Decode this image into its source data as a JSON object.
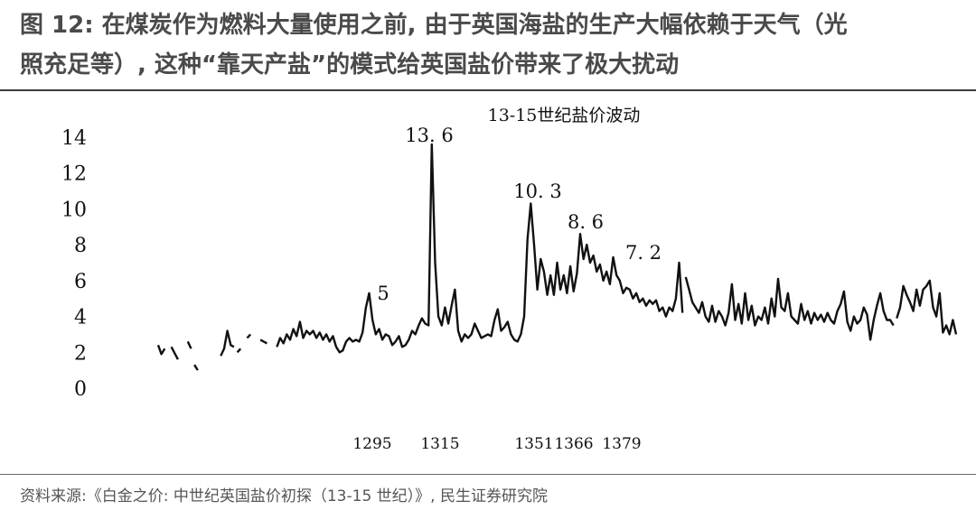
{
  "figure": {
    "title_line1": "图 12: 在煤炭作为燃料大量使用之前, 由于英国海盐的生产大幅依赖于天气（光",
    "title_line2": "照充足等）, 这种“靠天产盐”的模式给英国盐价带来了极大扰动",
    "source": "资料来源:《白金之价: 中世纪英国盐价初探（13-15 世纪）》, 民生证券研究院"
  },
  "chart_data": {
    "type": "line",
    "title": "13-15世纪盐价波动",
    "xlabel": "",
    "ylabel": "",
    "xlim": [
      1260,
      1500
    ],
    "ylim": [
      0,
      14
    ],
    "y_ticks": [
      0,
      2,
      4,
      6,
      8,
      10,
      12,
      14
    ],
    "x_tick_labels": [
      {
        "x": 1295,
        "label": "1295"
      },
      {
        "x": 1315,
        "label": "1315"
      },
      {
        "x": 1351,
        "label": "1351"
      },
      {
        "x": 1366,
        "label": "1366"
      },
      {
        "x": 1379,
        "label": "1379"
      }
    ],
    "annotations": [
      {
        "x": 1295,
        "y": 5.5,
        "label": "5"
      },
      {
        "x": 1315,
        "y": 13.6,
        "label": "13. 6"
      },
      {
        "x": 1351,
        "y": 10.3,
        "label": "10. 3"
      },
      {
        "x": 1366,
        "y": 8.6,
        "label": "8. 6"
      },
      {
        "x": 1379,
        "y": 7.2,
        "label": "7. 2"
      }
    ],
    "grid": false,
    "color": "#111111",
    "segments": [
      [
        [
          1262,
          2.4
        ],
        [
          1263,
          1.9
        ],
        [
          1264,
          2.2
        ]
      ],
      [
        [
          1266,
          2.3
        ],
        [
          1268,
          1.6
        ]
      ],
      [
        [
          1271,
          2.6
        ],
        [
          1272,
          2.2
        ]
      ],
      [
        [
          1273,
          1.3
        ],
        [
          1274,
          1.0
        ]
      ],
      [
        [
          1281,
          1.8
        ],
        [
          1282,
          2.2
        ],
        [
          1283,
          3.2
        ],
        [
          1284,
          2.4
        ],
        [
          1285,
          2.3
        ]
      ],
      [
        [
          1286,
          2.0
        ],
        [
          1287,
          2.2
        ]
      ],
      [
        [
          1289,
          2.8
        ],
        [
          1290,
          3.0
        ]
      ],
      [
        [
          1293,
          2.7
        ],
        [
          1295,
          2.5
        ]
      ],
      [
        [
          1298,
          2.3
        ],
        [
          1299,
          2.8
        ],
        [
          1300,
          2.5
        ],
        [
          1301,
          3.0
        ],
        [
          1302,
          2.7
        ],
        [
          1303,
          3.3
        ],
        [
          1304,
          2.9
        ],
        [
          1305,
          3.7
        ],
        [
          1306,
          2.8
        ],
        [
          1307,
          3.2
        ],
        [
          1308,
          3.0
        ],
        [
          1309,
          3.2
        ],
        [
          1310,
          2.8
        ],
        [
          1311,
          3.1
        ],
        [
          1312,
          2.7
        ],
        [
          1313,
          3.0
        ],
        [
          1314,
          2.6
        ],
        [
          1315,
          2.9
        ],
        [
          1316,
          2.3
        ],
        [
          1317,
          2.0
        ],
        [
          1318,
          2.1
        ],
        [
          1319,
          2.6
        ],
        [
          1320,
          2.8
        ],
        [
          1321,
          2.6
        ],
        [
          1322,
          2.7
        ],
        [
          1323,
          2.6
        ],
        [
          1324,
          3.1
        ],
        [
          1325,
          4.5
        ],
        [
          1326,
          5.3
        ],
        [
          1327,
          3.8
        ],
        [
          1328,
          3.0
        ],
        [
          1329,
          3.3
        ],
        [
          1330,
          2.7
        ],
        [
          1331,
          3.0
        ],
        [
          1332,
          2.9
        ],
        [
          1333,
          2.4
        ],
        [
          1334,
          2.6
        ],
        [
          1335,
          2.9
        ],
        [
          1336,
          2.3
        ],
        [
          1337,
          2.4
        ],
        [
          1338,
          2.7
        ],
        [
          1339,
          3.2
        ],
        [
          1340,
          3.0
        ],
        [
          1341,
          3.5
        ],
        [
          1342,
          3.9
        ],
        [
          1343,
          3.6
        ],
        [
          1344,
          3.5
        ],
        [
          1345,
          13.6
        ],
        [
          1346,
          7.0
        ],
        [
          1347,
          4.0
        ],
        [
          1348,
          3.5
        ],
        [
          1349,
          4.5
        ],
        [
          1350,
          3.6
        ],
        [
          1351,
          4.6
        ],
        [
          1352,
          5.5
        ],
        [
          1353,
          3.2
        ],
        [
          1354,
          2.6
        ],
        [
          1355,
          3.0
        ],
        [
          1356,
          2.8
        ],
        [
          1357,
          3.0
        ],
        [
          1358,
          3.6
        ],
        [
          1359,
          3.2
        ],
        [
          1360,
          2.8
        ],
        [
          1361,
          2.9
        ],
        [
          1362,
          3.0
        ],
        [
          1363,
          2.9
        ],
        [
          1364,
          3.8
        ],
        [
          1365,
          4.4
        ],
        [
          1366,
          3.2
        ],
        [
          1367,
          3.4
        ],
        [
          1368,
          3.7
        ],
        [
          1369,
          3.0
        ],
        [
          1370,
          2.7
        ],
        [
          1371,
          2.6
        ],
        [
          1372,
          3.0
        ],
        [
          1373,
          4.0
        ],
        [
          1374,
          8.3
        ],
        [
          1375,
          10.3
        ],
        [
          1376,
          8.0
        ],
        [
          1377,
          5.5
        ],
        [
          1378,
          7.2
        ],
        [
          1379,
          6.5
        ],
        [
          1380,
          5.2
        ],
        [
          1381,
          6.3
        ],
        [
          1382,
          5.2
        ],
        [
          1383,
          7.0
        ],
        [
          1384,
          5.5
        ],
        [
          1385,
          6.3
        ],
        [
          1386,
          5.3
        ],
        [
          1387,
          6.8
        ],
        [
          1388,
          5.4
        ],
        [
          1389,
          6.4
        ],
        [
          1390,
          8.6
        ],
        [
          1391,
          7.2
        ],
        [
          1392,
          8.0
        ],
        [
          1393,
          7.0
        ],
        [
          1394,
          7.4
        ],
        [
          1395,
          6.5
        ],
        [
          1396,
          6.9
        ],
        [
          1397,
          6.0
        ],
        [
          1398,
          6.5
        ],
        [
          1399,
          5.8
        ],
        [
          1400,
          7.3
        ],
        [
          1401,
          6.3
        ],
        [
          1402,
          6.0
        ],
        [
          1403,
          5.3
        ],
        [
          1404,
          5.6
        ],
        [
          1405,
          5.5
        ],
        [
          1406,
          5.0
        ],
        [
          1407,
          5.3
        ],
        [
          1408,
          4.8
        ],
        [
          1409,
          5.0
        ],
        [
          1410,
          4.6
        ],
        [
          1411,
          4.9
        ],
        [
          1412,
          4.7
        ],
        [
          1413,
          4.9
        ],
        [
          1414,
          4.3
        ],
        [
          1415,
          4.5
        ],
        [
          1416,
          4.0
        ],
        [
          1417,
          4.5
        ],
        [
          1418,
          4.3
        ],
        [
          1419,
          5.0
        ],
        [
          1420,
          7.0
        ],
        [
          1421,
          4.2
        ]
      ],
      [
        [
          1422,
          6.2
        ],
        [
          1423,
          5.5
        ],
        [
          1424,
          4.8
        ],
        [
          1425,
          4.5
        ],
        [
          1426,
          4.2
        ],
        [
          1427,
          4.8
        ],
        [
          1428,
          4.0
        ],
        [
          1429,
          3.7
        ],
        [
          1430,
          4.6
        ],
        [
          1431,
          3.7
        ],
        [
          1432,
          4.3
        ],
        [
          1433,
          4.0
        ],
        [
          1434,
          3.5
        ],
        [
          1435,
          4.2
        ],
        [
          1436,
          5.8
        ],
        [
          1437,
          3.8
        ],
        [
          1438,
          4.7
        ],
        [
          1439,
          3.6
        ],
        [
          1440,
          5.3
        ],
        [
          1441,
          3.8
        ],
        [
          1442,
          4.6
        ],
        [
          1443,
          3.5
        ],
        [
          1444,
          4.0
        ],
        [
          1445,
          3.8
        ],
        [
          1446,
          4.5
        ],
        [
          1447,
          3.6
        ],
        [
          1448,
          5.0
        ],
        [
          1449,
          4.0
        ],
        [
          1450,
          6.1
        ],
        [
          1451,
          4.5
        ],
        [
          1452,
          4.3
        ],
        [
          1453,
          5.3
        ],
        [
          1454,
          4.0
        ],
        [
          1455,
          3.8
        ],
        [
          1456,
          3.6
        ],
        [
          1457,
          4.7
        ],
        [
          1458,
          3.8
        ],
        [
          1459,
          4.3
        ],
        [
          1460,
          3.6
        ],
        [
          1461,
          4.2
        ],
        [
          1462,
          3.8
        ],
        [
          1463,
          4.1
        ],
        [
          1464,
          3.7
        ],
        [
          1465,
          4.2
        ],
        [
          1466,
          3.8
        ],
        [
          1467,
          3.6
        ],
        [
          1468,
          4.3
        ],
        [
          1469,
          4.7
        ],
        [
          1470,
          5.4
        ],
        [
          1471,
          3.7
        ],
        [
          1472,
          3.2
        ],
        [
          1473,
          4.0
        ],
        [
          1474,
          3.6
        ],
        [
          1475,
          3.8
        ],
        [
          1476,
          4.5
        ],
        [
          1477,
          4.1
        ],
        [
          1478,
          2.7
        ],
        [
          1479,
          3.8
        ],
        [
          1480,
          4.6
        ],
        [
          1481,
          5.3
        ],
        [
          1482,
          4.3
        ],
        [
          1483,
          3.8
        ],
        [
          1484,
          3.8
        ],
        [
          1485,
          3.5
        ]
      ],
      [
        [
          1486,
          3.9
        ],
        [
          1487,
          4.5
        ],
        [
          1488,
          5.7
        ],
        [
          1489,
          5.2
        ],
        [
          1490,
          4.8
        ],
        [
          1491,
          4.3
        ],
        [
          1492,
          5.5
        ],
        [
          1493,
          4.6
        ],
        [
          1494,
          5.5
        ],
        [
          1495,
          5.7
        ],
        [
          1496,
          6.0
        ],
        [
          1497,
          4.5
        ],
        [
          1498,
          4.0
        ],
        [
          1499,
          5.3
        ],
        [
          1500,
          3.1
        ],
        [
          1501,
          3.5
        ],
        [
          1502,
          3.0
        ],
        [
          1503,
          3.8
        ],
        [
          1504,
          3.0
        ]
      ]
    ]
  }
}
